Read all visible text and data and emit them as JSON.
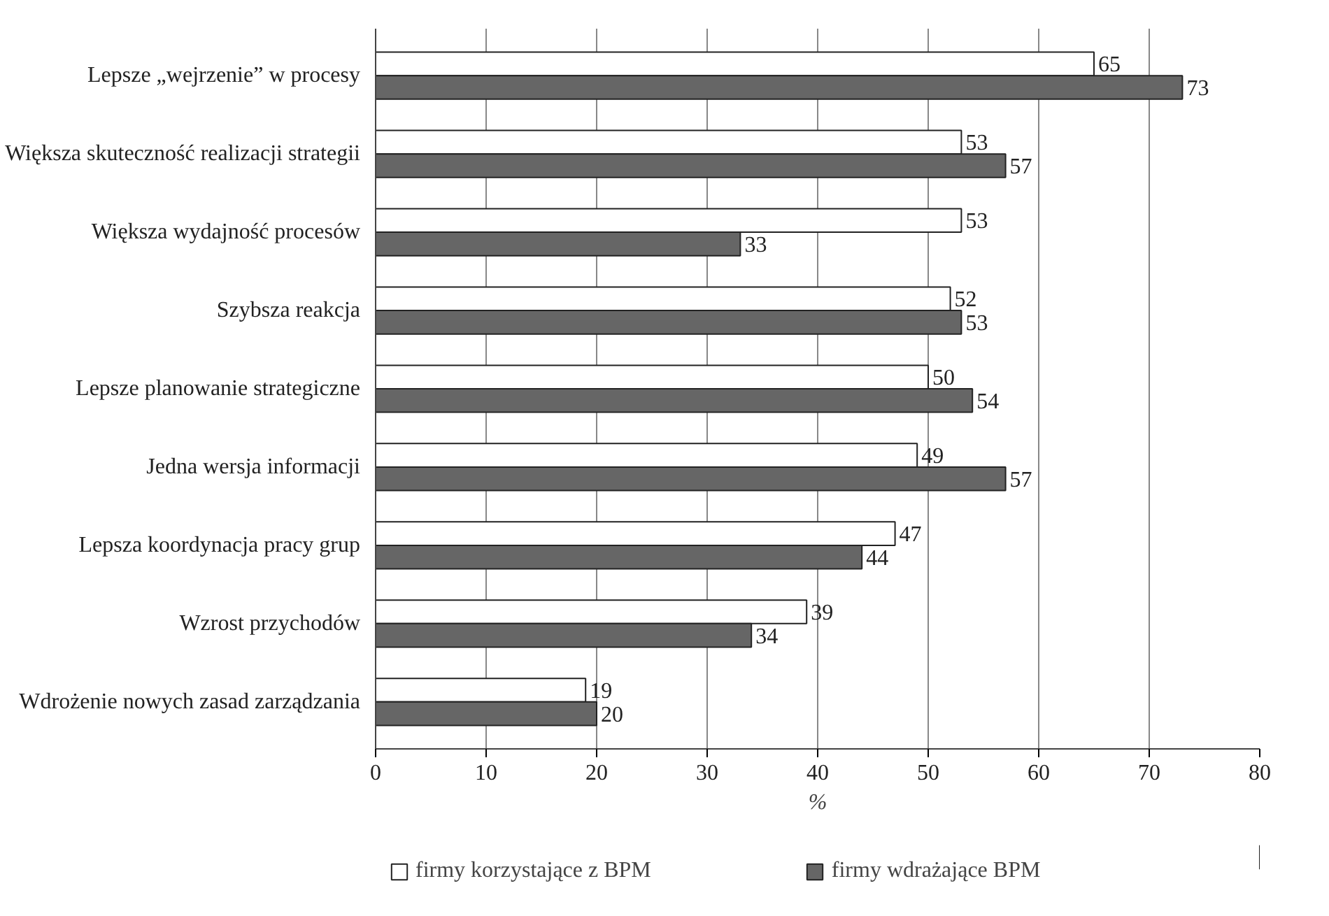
{
  "chart_data": {
    "type": "bar",
    "orientation": "horizontal",
    "xlabel": "%",
    "categories": [
      "Lepsze „wejrzenie” w procesy",
      "Większa skuteczność realizacji strategii",
      "Większa wydajność procesów",
      "Szybsza reakcja",
      "Lepsze planowanie strategiczne",
      "Jedna wersja informacji",
      "Lepsza koordynacja pracy grup",
      "Wzrost przychodów",
      "Wdrożenie nowych zasad zarządzania"
    ],
    "series": [
      {
        "name": "firmy korzystające z BPM",
        "color": "#ffffff",
        "values": [
          65,
          53,
          53,
          52,
          50,
          49,
          47,
          39,
          19
        ]
      },
      {
        "name": "firmy wdrażające BPM",
        "color": "#666666",
        "values": [
          73,
          57,
          33,
          53,
          54,
          57,
          44,
          34,
          20
        ]
      }
    ],
    "xlim": [
      0,
      80
    ],
    "xticks": [
      0,
      10,
      20,
      30,
      40,
      50,
      60,
      70,
      80
    ],
    "grid": "x",
    "legend": "bottom",
    "data_labels": true
  }
}
